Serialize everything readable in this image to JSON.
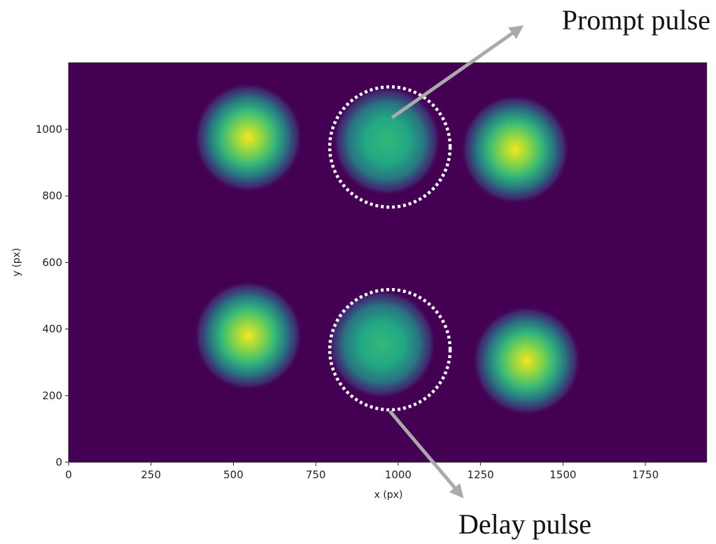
{
  "chart_data": {
    "type": "image",
    "xlabel": "x (px)",
    "ylabel": "y (px)",
    "xlim": [
      0,
      1936
    ],
    "ylim": [
      0,
      1200
    ],
    "xticks": [
      0,
      250,
      500,
      750,
      1000,
      1250,
      1500,
      1750
    ],
    "yticks": [
      0,
      200,
      400,
      600,
      800,
      1000
    ],
    "background": "#440154",
    "spots": {
      "x": [
        545,
        965,
        1355,
        545,
        950,
        1390
      ],
      "y": [
        975,
        965,
        940,
        380,
        355,
        305
      ],
      "intensity": [
        1.0,
        0.6,
        1.0,
        0.95,
        0.6,
        1.0
      ]
    },
    "annotations": [
      {
        "text": "Prompt pulse",
        "x": 975,
        "y": 947
      },
      {
        "text": "Delay pulse",
        "x": 975,
        "y": 338
      }
    ]
  }
}
